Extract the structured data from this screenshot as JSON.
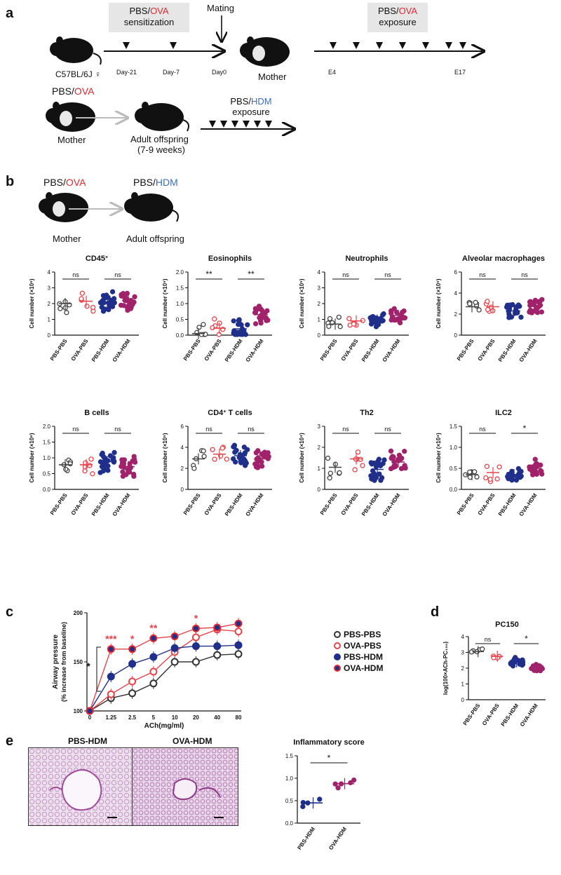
{
  "panels": {
    "a": "a",
    "b": "b",
    "c": "c",
    "d": "d",
    "e": "e"
  },
  "panel_a": {
    "strain": "C57BL/6J ♀",
    "sensitization_prefix": "PBS/",
    "sensitization_ova": "OVA",
    "sensitization_word": "sensitization",
    "days": [
      "Day-21",
      "Day-7",
      "Day0"
    ],
    "mating": "Mating",
    "mother": "Mother",
    "exposure_prefix": "PBS/",
    "exposure_ova": "OVA",
    "exposure_word": "exposure",
    "e_start": "E4",
    "e_end": "E17",
    "row2_prefix": "PBS/",
    "row2_ova": "OVA",
    "row2_mother": "Mother",
    "offspring": "Adult offspring",
    "offspring_age": "(7-9 weeks)",
    "hdm_prefix": "PBS/",
    "hdm": "HDM",
    "hdm_exposure": "exposure"
  },
  "panel_b": {
    "mother_prefix": "PBS/",
    "mother_ova": "OVA",
    "off_prefix": "PBS/",
    "off_hdm": "HDM",
    "mother": "Mother",
    "offspring": "Adult offspring"
  },
  "groups": [
    "PBS-PBS",
    "OVA-PBS",
    "PBS-HDM",
    "OVA-HDM"
  ],
  "colors": {
    "pbs_pbs": "#555555",
    "ova_pbs": "#e8434a",
    "pbs_hdm": "#1f2f8a",
    "ova_hdm": "#a0226a",
    "ova_fill_ring": "#e0282e",
    "hdm_blue": "#3a6fc0"
  },
  "chart_data": [
    {
      "type": "scatter",
      "title": "CD45",
      "title_sup": "+",
      "ylabel": "Cell number (×10⁶)",
      "ylim": [
        0,
        4
      ],
      "yticks": [
        "0",
        "1",
        "2",
        "3",
        "4"
      ],
      "means": [
        2.0,
        2.15,
        2.1,
        2.2
      ],
      "sig": [
        "ns",
        "ns"
      ]
    },
    {
      "type": "scatter",
      "title": "Eosinophils",
      "title_sup": "",
      "ylabel": "Cell number (×10⁵)",
      "ylim": [
        0,
        2.0
      ],
      "yticks": [
        "0.0",
        "0.5",
        "1.0",
        "1.5",
        "2.0"
      ],
      "means": [
        0.05,
        0.22,
        0.2,
        0.65
      ],
      "sig": [
        "**",
        "**"
      ]
    },
    {
      "type": "scatter",
      "title": "Neutrophils",
      "title_sup": "",
      "ylabel": "Cell number (×10⁵)",
      "ylim": [
        0,
        4
      ],
      "yticks": [
        "0",
        "1",
        "2",
        "3",
        "4"
      ],
      "means": [
        0.7,
        0.9,
        0.95,
        1.25
      ],
      "sig": [
        "ns",
        "ns"
      ]
    },
    {
      "type": "scatter",
      "title": "Alveolar macrophages",
      "title_sup": "",
      "ylabel": "Cell number (×10⁵)",
      "ylim": [
        0,
        6
      ],
      "yticks": [
        "0",
        "2",
        "4",
        "6"
      ],
      "means": [
        2.7,
        2.7,
        2.3,
        2.75
      ],
      "sig": [
        "ns",
        "ns"
      ]
    },
    {
      "type": "scatter",
      "title": "B cells",
      "title_sup": "",
      "ylabel": "Cell number (×10⁶)",
      "ylim": [
        0,
        2.0
      ],
      "yticks": [
        "0.0",
        "0.5",
        "1.0",
        "1.5",
        "2.0"
      ],
      "means": [
        0.78,
        0.78,
        0.88,
        0.72
      ],
      "sig": [
        "ns",
        "ns"
      ]
    },
    {
      "type": "scatter",
      "title": "CD4",
      "title_sup": "+",
      "title_suffix": " T cells",
      "ylabel": "Cell number (×10⁵)",
      "ylim": [
        0,
        6
      ],
      "yticks": [
        "0",
        "2",
        "4",
        "6"
      ],
      "means": [
        2.9,
        3.35,
        3.2,
        2.9
      ],
      "sig": [
        "ns",
        "ns"
      ]
    },
    {
      "type": "scatter",
      "title": "Th2",
      "title_sup": "",
      "ylabel": "Cell number (×10⁴)",
      "ylim": [
        0,
        3
      ],
      "yticks": [
        "0",
        "1",
        "2",
        "3"
      ],
      "means": [
        1.05,
        1.45,
        0.95,
        1.3
      ],
      "sig": [
        "ns",
        "ns"
      ]
    },
    {
      "type": "scatter",
      "title": "ILC2",
      "title_sup": "",
      "ylabel": "Cell number (×10⁴)",
      "ylim": [
        0,
        1.5
      ],
      "yticks": [
        "0.0",
        "0.5",
        "1.0",
        "1.5"
      ],
      "means": [
        0.35,
        0.4,
        0.35,
        0.5
      ],
      "sig": [
        "ns",
        "*"
      ]
    },
    {
      "type": "line",
      "title": "",
      "xlabel": "ACh(mg/ml)",
      "ylabel": "Airway pressure",
      "ylabel2": "(% increase from baseline)",
      "x": [
        "0",
        "1.25",
        "2.5",
        "5",
        "10",
        "20",
        "40",
        "80"
      ],
      "ylim": [
        100,
        200
      ],
      "yticks": [
        "100",
        "150",
        "200"
      ],
      "series": [
        {
          "name": "PBS-PBS",
          "values": [
            100,
            113,
            118,
            128,
            150,
            150,
            157,
            158
          ]
        },
        {
          "name": "OVA-PBS",
          "values": [
            100,
            117,
            130,
            140,
            160,
            175,
            183,
            181
          ]
        },
        {
          "name": "PBS-HDM",
          "values": [
            100,
            135,
            148,
            155,
            164,
            166,
            166,
            167
          ]
        },
        {
          "name": "OVA-HDM",
          "values": [
            100,
            163,
            163,
            174,
            176,
            184,
            185,
            189
          ]
        }
      ],
      "sig": [
        "***",
        "*",
        "**",
        "*"
      ],
      "bracket_sig": "*"
    },
    {
      "type": "scatter",
      "title": "PC150",
      "title_sup": "",
      "ylabel": "log(100×ACh-PC₁₅₀)",
      "ylim": [
        0,
        4
      ],
      "yticks": [
        "0",
        "1",
        "2",
        "3",
        "4"
      ],
      "means": [
        3.05,
        2.75,
        2.4,
        2.05
      ],
      "sig": [
        "ns",
        "*"
      ]
    },
    {
      "type": "scatter",
      "title": "Inflammatory score",
      "title_sup": "",
      "ylabel": "",
      "ylim": [
        0,
        1.5
      ],
      "yticks": [
        "0.0",
        "0.5",
        "1.0",
        "1.5"
      ],
      "groups": [
        "PBS-HDM",
        "OVA-HDM"
      ],
      "means": [
        0.45,
        0.88
      ],
      "sig": [
        "*"
      ]
    }
  ],
  "panel_e": {
    "left": "PBS-HDM",
    "right": "OVA-HDM"
  }
}
